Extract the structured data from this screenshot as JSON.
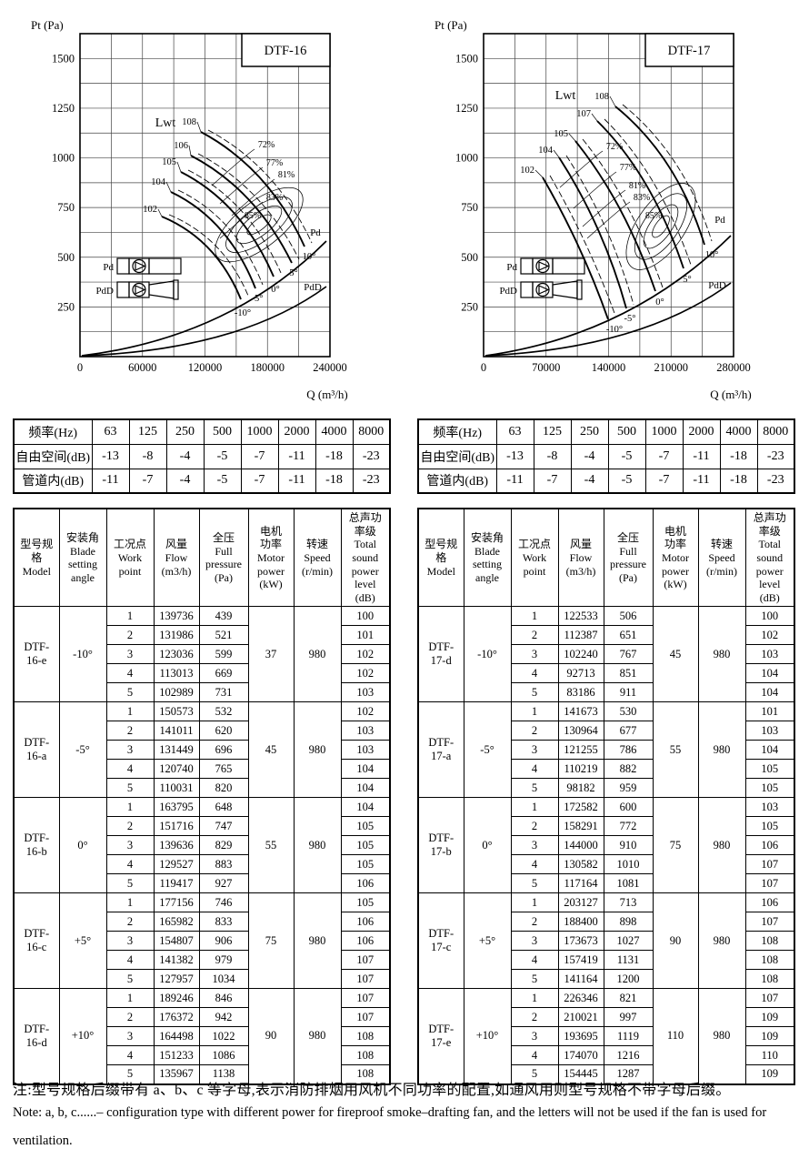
{
  "charts": [
    {
      "title": "DTF-16",
      "y_axis_label": "Pt (Pa)",
      "x_axis_label": "Q (m³/h)",
      "y_ticks": [
        "1500",
        "1250",
        "1000",
        "750",
        "500",
        "250"
      ],
      "x_ticks": [
        "0",
        "60000",
        "120000",
        "180000",
        "240000"
      ],
      "lwt_label": "Lwt",
      "lwt_curves": [
        "108",
        "106",
        "105",
        "104",
        "102"
      ],
      "efficiency_contours": [
        "72%",
        "77%",
        "81%",
        "83%",
        "85%"
      ],
      "blade_angles": [
        "-10°",
        "-5°",
        "0°",
        "5°",
        "10°"
      ],
      "pd_curve_label": "Pd",
      "pdd_curve_label": "PdD",
      "legend": {
        "pd": "Pd",
        "pdd": "PdD"
      }
    },
    {
      "title": "DTF-17",
      "y_axis_label": "Pt (Pa)",
      "x_axis_label": "Q (m³/h)",
      "y_ticks": [
        "1500",
        "1250",
        "1000",
        "750",
        "500",
        "250"
      ],
      "x_ticks": [
        "0",
        "70000",
        "140000",
        "210000",
        "280000"
      ],
      "lwt_label": "Lwt",
      "lwt_curves": [
        "108",
        "107",
        "105",
        "104",
        "102"
      ],
      "efficiency_contours": [
        "72%",
        "77%",
        "81%",
        "83%",
        "85%"
      ],
      "blade_angles": [
        "-10°",
        "-5°",
        "0°",
        "5°",
        "10°"
      ],
      "pd_curve_label": "Pd",
      "pdd_curve_label": "PdD",
      "legend": {
        "pd": "Pd",
        "pdd": "PdD"
      }
    }
  ],
  "noise_tables": [
    {
      "header_label": "频率(Hz)",
      "freqs": [
        "63",
        "125",
        "250",
        "500",
        "1000",
        "2000",
        "4000",
        "8000"
      ],
      "rows": [
        {
          "label": "自由空间(dB)",
          "values": [
            "-13",
            "-8",
            "-4",
            "-5",
            "-7",
            "-11",
            "-18",
            "-23"
          ]
        },
        {
          "label": "管道内(dB)",
          "values": [
            "-11",
            "-7",
            "-4",
            "-5",
            "-7",
            "-11",
            "-18",
            "-23"
          ]
        }
      ]
    },
    {
      "header_label": "频率(Hz)",
      "freqs": [
        "63",
        "125",
        "250",
        "500",
        "1000",
        "2000",
        "4000",
        "8000"
      ],
      "rows": [
        {
          "label": "自由空间(dB)",
          "values": [
            "-13",
            "-8",
            "-4",
            "-5",
            "-7",
            "-11",
            "-18",
            "-23"
          ]
        },
        {
          "label": "管道内(dB)",
          "values": [
            "-11",
            "-7",
            "-4",
            "-5",
            "-7",
            "-11",
            "-18",
            "-23"
          ]
        }
      ]
    }
  ],
  "spec_table_headers": {
    "model": [
      "型号规格",
      "Model"
    ],
    "angle": [
      "安装角",
      "Blade",
      "setting",
      "angle"
    ],
    "work_point": [
      "工况点",
      "Work",
      "point"
    ],
    "flow": [
      "风量",
      "Flow",
      "(m3/h)"
    ],
    "pressure": [
      "全压",
      "Full",
      "pressure",
      "(Pa)"
    ],
    "motor": [
      "电机",
      "功率",
      "Motor",
      "power",
      "(kW)"
    ],
    "speed": [
      "转速",
      "Speed",
      "(r/min)"
    ],
    "sound": [
      "总声功",
      "率级",
      "Total",
      "sound",
      "power",
      "level",
      "(dB)"
    ]
  },
  "spec_tables": [
    {
      "groups": [
        {
          "model": [
            "DTF-",
            "16-e"
          ],
          "angle": "-10°",
          "motor": "37",
          "speed": "980",
          "rows": [
            [
              "1",
              "139736",
              "439",
              "100"
            ],
            [
              "2",
              "131986",
              "521",
              "101"
            ],
            [
              "3",
              "123036",
              "599",
              "102"
            ],
            [
              "4",
              "113013",
              "669",
              "102"
            ],
            [
              "5",
              "102989",
              "731",
              "103"
            ]
          ]
        },
        {
          "model": [
            "DTF-",
            "16-a"
          ],
          "angle": "-5°",
          "motor": "45",
          "speed": "980",
          "rows": [
            [
              "1",
              "150573",
              "532",
              "102"
            ],
            [
              "2",
              "141011",
              "620",
              "103"
            ],
            [
              "3",
              "131449",
              "696",
              "103"
            ],
            [
              "4",
              "120740",
              "765",
              "104"
            ],
            [
              "5",
              "110031",
              "820",
              "104"
            ]
          ]
        },
        {
          "model": [
            "DTF-",
            "16-b"
          ],
          "angle": "0°",
          "motor": "55",
          "speed": "980",
          "rows": [
            [
              "1",
              "163795",
              "648",
              "104"
            ],
            [
              "2",
              "151716",
              "747",
              "105"
            ],
            [
              "3",
              "139636",
              "829",
              "105"
            ],
            [
              "4",
              "129527",
              "883",
              "105"
            ],
            [
              "5",
              "119417",
              "927",
              "106"
            ]
          ]
        },
        {
          "model": [
            "DTF-",
            "16-c"
          ],
          "angle": "+5°",
          "motor": "75",
          "speed": "980",
          "rows": [
            [
              "1",
              "177156",
              "746",
              "105"
            ],
            [
              "2",
              "165982",
              "833",
              "106"
            ],
            [
              "3",
              "154807",
              "906",
              "106"
            ],
            [
              "4",
              "141382",
              "979",
              "107"
            ],
            [
              "5",
              "127957",
              "1034",
              "107"
            ]
          ]
        },
        {
          "model": [
            "DTF-",
            "16-d"
          ],
          "angle": "+10°",
          "motor": "90",
          "speed": "980",
          "rows": [
            [
              "1",
              "189246",
              "846",
              "107"
            ],
            [
              "2",
              "176372",
              "942",
              "107"
            ],
            [
              "3",
              "164498",
              "1022",
              "108"
            ],
            [
              "4",
              "151233",
              "1086",
              "108"
            ],
            [
              "5",
              "135967",
              "1138",
              "108"
            ]
          ]
        }
      ]
    },
    {
      "groups": [
        {
          "model": [
            "DTF-",
            "17-d"
          ],
          "angle": "-10°",
          "motor": "45",
          "speed": "980",
          "rows": [
            [
              "1",
              "122533",
              "506",
              "100"
            ],
            [
              "2",
              "112387",
              "651",
              "102"
            ],
            [
              "3",
              "102240",
              "767",
              "103"
            ],
            [
              "4",
              "92713",
              "851",
              "104"
            ],
            [
              "5",
              "83186",
              "911",
              "104"
            ]
          ]
        },
        {
          "model": [
            "DTF-",
            "17-a"
          ],
          "angle": "-5°",
          "motor": "55",
          "speed": "980",
          "rows": [
            [
              "1",
              "141673",
              "530",
              "101"
            ],
            [
              "2",
              "130964",
              "677",
              "103"
            ],
            [
              "3",
              "121255",
              "786",
              "104"
            ],
            [
              "4",
              "110219",
              "882",
              "105"
            ],
            [
              "5",
              "98182",
              "959",
              "105"
            ]
          ]
        },
        {
          "model": [
            "DTF-",
            "17-b"
          ],
          "angle": "0°",
          "motor": "75",
          "speed": "980",
          "rows": [
            [
              "1",
              "172582",
              "600",
              "103"
            ],
            [
              "2",
              "158291",
              "772",
              "105"
            ],
            [
              "3",
              "144000",
              "910",
              "106"
            ],
            [
              "4",
              "130582",
              "1010",
              "107"
            ],
            [
              "5",
              "117164",
              "1081",
              "107"
            ]
          ]
        },
        {
          "model": [
            "DTF-",
            "17-c"
          ],
          "angle": "+5°",
          "motor": "90",
          "speed": "980",
          "rows": [
            [
              "1",
              "203127",
              "713",
              "106"
            ],
            [
              "2",
              "188400",
              "898",
              "107"
            ],
            [
              "3",
              "173673",
              "1027",
              "108"
            ],
            [
              "4",
              "157419",
              "1131",
              "108"
            ],
            [
              "5",
              "141164",
              "1200",
              "108"
            ]
          ]
        },
        {
          "model": [
            "DTF-",
            "17-e"
          ],
          "angle": "+10°",
          "motor": "110",
          "speed": "980",
          "rows": [
            [
              "1",
              "226346",
              "821",
              "107"
            ],
            [
              "2",
              "210021",
              "997",
              "109"
            ],
            [
              "3",
              "193695",
              "1119",
              "109"
            ],
            [
              "4",
              "174070",
              "1216",
              "110"
            ],
            [
              "5",
              "154445",
              "1287",
              "109"
            ]
          ]
        }
      ]
    }
  ],
  "notes": {
    "cn": "注:型号规格后缀带有 a、b、c 等字母,表示消防排烟用风机不同功率的配置,如通风用则型号规格不带字母后缀。",
    "en_line1": "Note: a, b, c......– configuration type with different power for fireproof smoke–drafting fan, and the letters will not be used if  the fan is used for",
    "en_line2": "ventilation."
  }
}
